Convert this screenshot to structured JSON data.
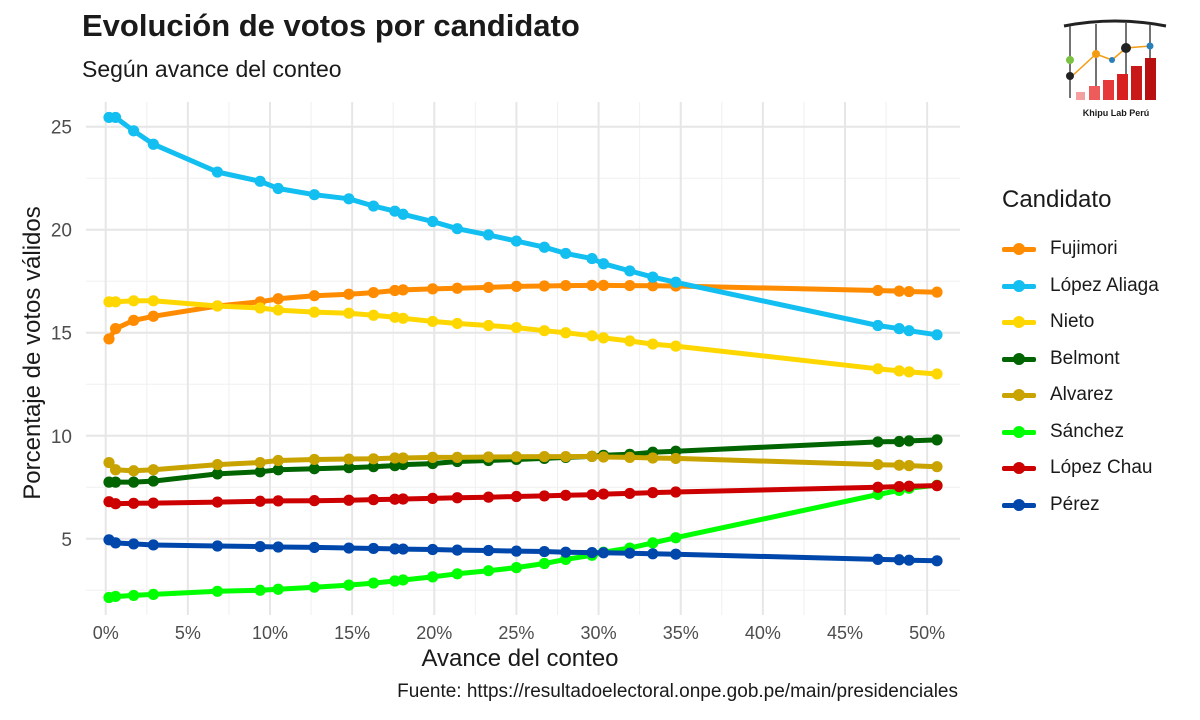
{
  "header": {
    "title": "Evolución de votos por candidato",
    "subtitle": "Según avance del conteo"
  },
  "caption": "Fuente: https://resultadoelectoral.onpe.gob.pe/main/presidenciales",
  "logo": {
    "text": "Khipu Lab Perú",
    "icon": "khipu-logo-icon"
  },
  "legend": {
    "title": "Candidato"
  },
  "chart_data": {
    "type": "line",
    "title": "Evolución de votos por candidato",
    "subtitle": "Según avance del conteo",
    "xlabel": "Avance del conteo",
    "ylabel": "Porcentaje de votos válidos",
    "xlim": [
      -1.2,
      52
    ],
    "ylim": [
      1.3,
      26.2
    ],
    "x_ticks": [
      0,
      5,
      10,
      15,
      20,
      25,
      30,
      35,
      40,
      45,
      50
    ],
    "x_tick_labels": [
      "0%",
      "5%",
      "10%",
      "15%",
      "20%",
      "25%",
      "30%",
      "35%",
      "40%",
      "45%",
      "50%"
    ],
    "y_ticks": [
      5,
      10,
      15,
      20,
      25
    ],
    "y_tick_labels": [
      "5",
      "10",
      "15",
      "20",
      "25"
    ],
    "grid": true,
    "legend_position": "right",
    "x": [
      0.2,
      0.6,
      1.7,
      2.9,
      6.8,
      9.4,
      10.5,
      12.7,
      14.8,
      16.3,
      17.6,
      18.1,
      19.9,
      21.4,
      23.3,
      25.0,
      26.7,
      28.0,
      29.6,
      30.3,
      31.9,
      33.3,
      34.7,
      47.0,
      48.3,
      48.9,
      50.6
    ],
    "series": [
      {
        "name": "Fujimori",
        "color": "#FF8C00",
        "values": [
          14.7,
          15.2,
          15.6,
          15.8,
          16.3,
          16.5,
          16.65,
          16.8,
          16.87,
          16.95,
          17.05,
          17.08,
          17.13,
          17.16,
          17.2,
          17.25,
          17.27,
          17.29,
          17.3,
          17.3,
          17.29,
          17.28,
          17.27,
          17.05,
          17.02,
          17.0,
          16.97
        ]
      },
      {
        "name": "López Aliaga",
        "color": "#13BEF0",
        "values": [
          25.45,
          25.45,
          24.8,
          24.15,
          22.8,
          22.35,
          22.0,
          21.7,
          21.5,
          21.15,
          20.9,
          20.75,
          20.4,
          20.05,
          19.75,
          19.45,
          19.15,
          18.85,
          18.6,
          18.35,
          18.0,
          17.7,
          17.45,
          15.35,
          15.2,
          15.1,
          14.9
        ]
      },
      {
        "name": "Nieto",
        "color": "#FFD700",
        "values": [
          16.5,
          16.5,
          16.55,
          16.55,
          16.3,
          16.2,
          16.1,
          16.0,
          15.95,
          15.85,
          15.75,
          15.7,
          15.55,
          15.45,
          15.35,
          15.25,
          15.1,
          15.0,
          14.85,
          14.75,
          14.6,
          14.45,
          14.35,
          13.25,
          13.15,
          13.1,
          13.0
        ]
      },
      {
        "name": "Belmont",
        "color": "#006400",
        "values": [
          7.75,
          7.75,
          7.75,
          7.8,
          8.15,
          8.25,
          8.35,
          8.4,
          8.45,
          8.5,
          8.55,
          8.6,
          8.65,
          8.75,
          8.8,
          8.85,
          8.9,
          8.95,
          9.0,
          9.05,
          9.1,
          9.2,
          9.25,
          9.7,
          9.72,
          9.75,
          9.8
        ]
      },
      {
        "name": "Alvarez",
        "color": "#C9A300",
        "values": [
          8.7,
          8.35,
          8.3,
          8.35,
          8.6,
          8.7,
          8.8,
          8.85,
          8.87,
          8.88,
          8.92,
          8.92,
          8.95,
          8.95,
          8.97,
          8.98,
          8.99,
          8.99,
          9.0,
          8.97,
          8.95,
          8.92,
          8.9,
          8.6,
          8.57,
          8.55,
          8.5
        ]
      },
      {
        "name": "Sánchez",
        "color": "#00FF00",
        "values": [
          2.15,
          2.2,
          2.25,
          2.3,
          2.45,
          2.5,
          2.55,
          2.65,
          2.75,
          2.85,
          2.95,
          3.0,
          3.15,
          3.3,
          3.45,
          3.6,
          3.8,
          4.0,
          4.2,
          4.35,
          4.55,
          4.8,
          5.05,
          7.15,
          7.35,
          7.45,
          7.6
        ]
      },
      {
        "name": "López Chau",
        "color": "#CC0000",
        "values": [
          6.8,
          6.7,
          6.72,
          6.73,
          6.78,
          6.82,
          6.84,
          6.85,
          6.87,
          6.9,
          6.92,
          6.93,
          6.96,
          6.99,
          7.02,
          7.05,
          7.08,
          7.11,
          7.14,
          7.17,
          7.2,
          7.24,
          7.27,
          7.5,
          7.53,
          7.55,
          7.58
        ]
      },
      {
        "name": "Pérez",
        "color": "#0047AB",
        "values": [
          4.95,
          4.8,
          4.75,
          4.7,
          4.65,
          4.62,
          4.6,
          4.58,
          4.55,
          4.53,
          4.51,
          4.5,
          4.48,
          4.45,
          4.43,
          4.4,
          4.38,
          4.35,
          4.33,
          4.32,
          4.3,
          4.27,
          4.25,
          4.0,
          3.98,
          3.96,
          3.93
        ]
      }
    ]
  }
}
